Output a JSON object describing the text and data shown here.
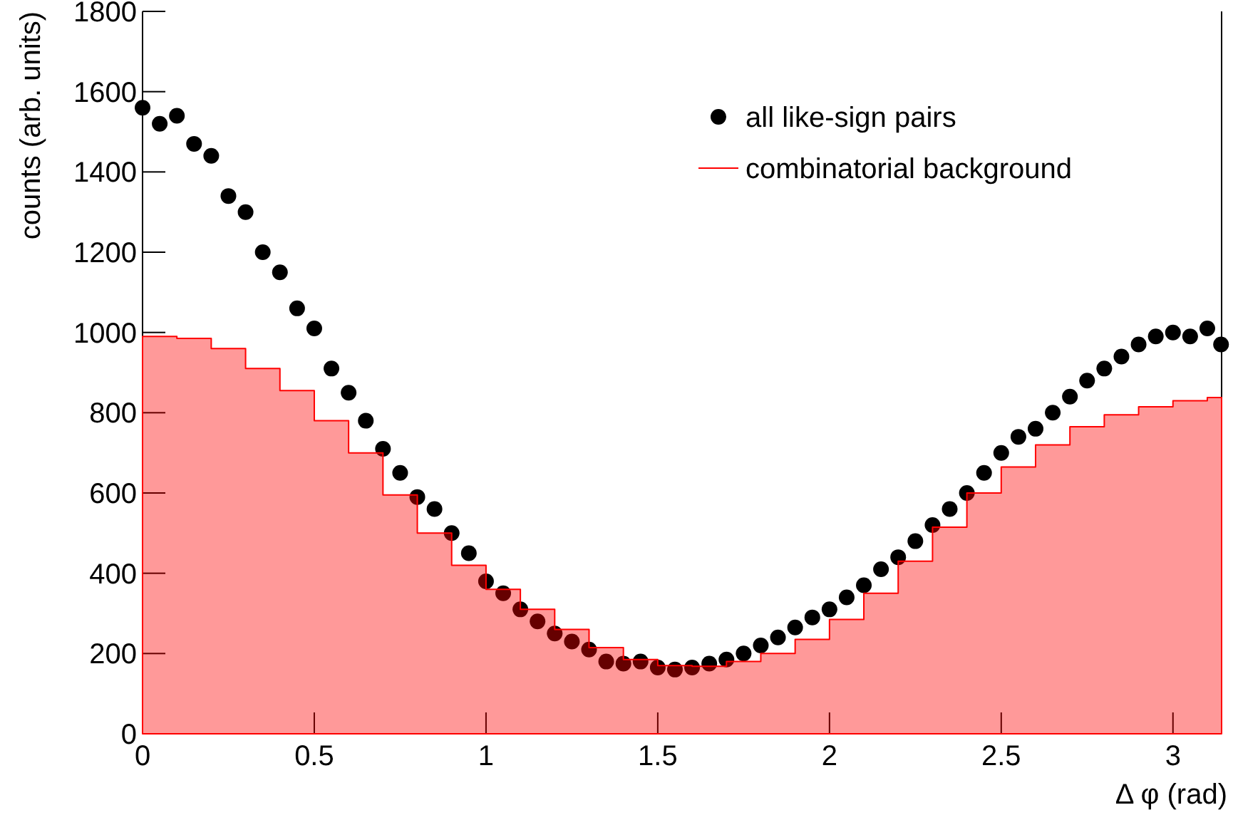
{
  "chart_data": {
    "type": "scatter",
    "xlabel": "Δ φ (rad)",
    "ylabel": "counts (arb. units)",
    "xlim": [
      0,
      3.1416
    ],
    "ylim": [
      0,
      1800
    ],
    "xticks": [
      0,
      0.5,
      1,
      1.5,
      2,
      2.5,
      3
    ],
    "yticks": [
      0,
      200,
      400,
      600,
      800,
      1000,
      1200,
      1400,
      1600,
      1800
    ],
    "grid": false,
    "legend": "top right",
    "marker": "circle",
    "series": [
      {
        "name": "all like-sign pairs",
        "color": "#000000",
        "x": [
          0,
          0.05,
          0.1,
          0.15,
          0.2,
          0.25,
          0.3,
          0.35,
          0.4,
          0.45,
          0.5,
          0.55,
          0.6,
          0.65,
          0.7,
          0.75,
          0.8,
          0.85,
          0.9,
          0.95,
          1,
          1.05,
          1.1,
          1.15,
          1.2,
          1.25,
          1.3,
          1.35,
          1.4,
          1.45,
          1.5,
          1.55,
          1.6,
          1.65,
          1.7,
          1.75,
          1.8,
          1.85,
          1.9,
          1.95,
          2,
          2.05,
          2.1,
          2.15,
          2.2,
          2.25,
          2.3,
          2.35,
          2.4,
          2.45,
          2.5,
          2.55,
          2.6,
          2.65,
          2.7,
          2.75,
          2.8,
          2.85,
          2.9,
          2.95,
          3,
          3.05,
          3.1,
          3.14
        ],
        "values": [
          1560,
          1520,
          1540,
          1470,
          1440,
          1340,
          1300,
          1200,
          1150,
          1060,
          1010,
          910,
          850,
          780,
          710,
          650,
          590,
          560,
          500,
          450,
          380,
          350,
          310,
          280,
          250,
          230,
          210,
          180,
          175,
          180,
          165,
          160,
          165,
          175,
          185,
          200,
          220,
          240,
          265,
          290,
          310,
          340,
          370,
          410,
          440,
          480,
          520,
          560,
          600,
          650,
          700,
          740,
          760,
          800,
          840,
          880,
          910,
          940,
          970,
          990,
          1000,
          990,
          1010,
          970
        ]
      },
      {
        "name": "combinatorial background",
        "type": "histogram",
        "color": "#ff0000",
        "bins": [
          0,
          0.1,
          0.2,
          0.3,
          0.4,
          0.5,
          0.6,
          0.7,
          0.8,
          0.9,
          1,
          1.1,
          1.2,
          1.3,
          1.4,
          1.5,
          1.6,
          1.7,
          1.8,
          1.9,
          2,
          2.1,
          2.2,
          2.3,
          2.4,
          2.5,
          2.6,
          2.7,
          2.8,
          2.9,
          3,
          3.1,
          3.1416
        ],
        "values": [
          990,
          985,
          960,
          910,
          855,
          780,
          700,
          595,
          500,
          420,
          360,
          310,
          260,
          215,
          185,
          170,
          168,
          180,
          200,
          235,
          285,
          350,
          430,
          515,
          600,
          665,
          720,
          765,
          795,
          815,
          830,
          838
        ]
      }
    ]
  }
}
